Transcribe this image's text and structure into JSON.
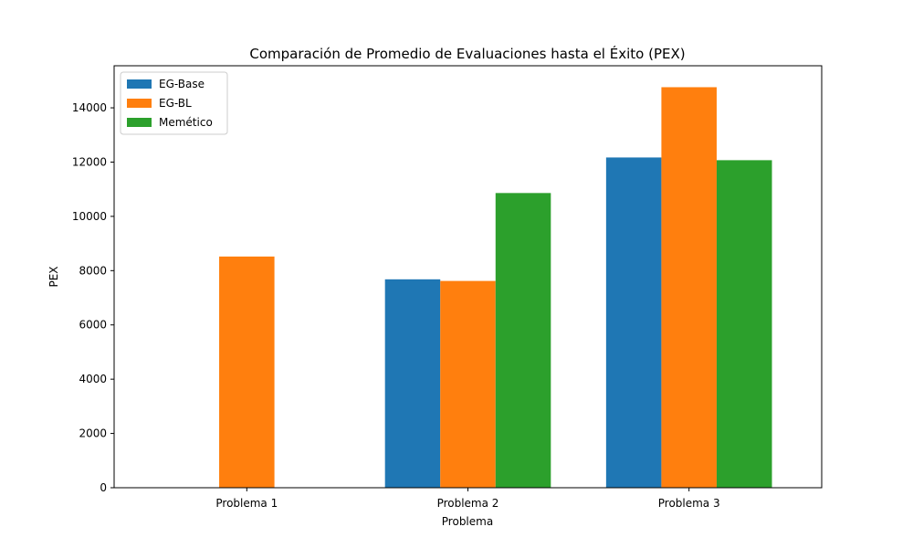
{
  "chart_data": {
    "type": "bar",
    "title": "Comparación de Promedio de Evaluaciones hasta el Éxito (PEX)",
    "xlabel": "Problema",
    "ylabel": "PEX",
    "categories": [
      "Problema 1",
      "Problema 2",
      "Problema 3"
    ],
    "series": [
      {
        "name": "EG-Base",
        "color": "#1f77b4",
        "values": [
          0,
          7680,
          12170
        ]
      },
      {
        "name": "EG-BL",
        "color": "#ff7f0e",
        "values": [
          8520,
          7620,
          14760
        ]
      },
      {
        "name": "Memético",
        "color": "#2ca02c",
        "values": [
          0,
          10860,
          12070
        ]
      }
    ],
    "ylim": [
      0,
      15550
    ],
    "yticks": [
      0,
      2000,
      4000,
      6000,
      8000,
      10000,
      12000,
      14000
    ],
    "legend": "top-left",
    "grid": false
  }
}
